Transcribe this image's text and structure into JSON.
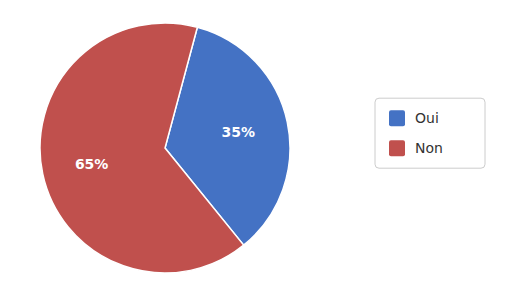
{
  "chart_data": {
    "type": "pie",
    "categories": [
      "Oui",
      "Non"
    ],
    "values": [
      35,
      65
    ],
    "value_labels": [
      "35%",
      "65%"
    ],
    "colors": [
      "#4472C4",
      "#C0504D"
    ],
    "data_labels": true,
    "legend": "right"
  }
}
